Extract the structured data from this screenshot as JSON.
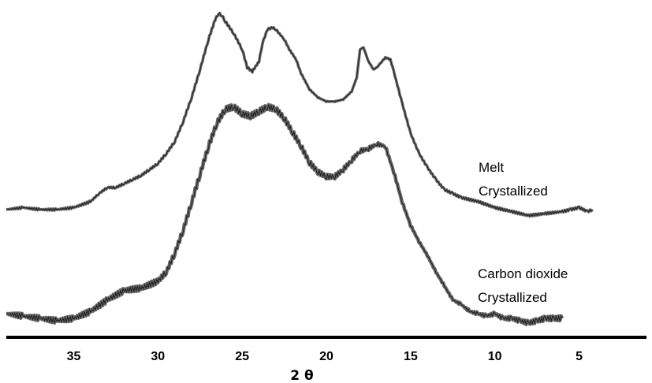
{
  "chart_data": {
    "type": "line",
    "xlabel": "2 θ",
    "ylabel": "",
    "x_reversed": true,
    "xlim": [
      39,
      1
    ],
    "x_ticks": [
      "35",
      "30",
      "25",
      "20",
      "15",
      "10",
      "5"
    ],
    "tick_values": [
      35,
      30,
      25,
      20,
      15,
      10,
      5
    ],
    "grid": false,
    "line_color": "#666666",
    "axis_color": "#000000",
    "series": [
      {
        "name": "Melt Crystallized",
        "label_lines": [
          "Melt",
          "Crystallized"
        ],
        "x": [
          39,
          38,
          37,
          36,
          35,
          34,
          33.5,
          33,
          32.5,
          32,
          31.5,
          31,
          30.5,
          30,
          29.5,
          29,
          28.5,
          28,
          27.5,
          27,
          26.6,
          26.4,
          26.2,
          26,
          25.5,
          25,
          24.7,
          24.4,
          24,
          23.8,
          23.5,
          23.2,
          23,
          22.5,
          22.2,
          21.8,
          21.5,
          21,
          20.5,
          20,
          19.5,
          19,
          18.5,
          18.2,
          18,
          17.8,
          17.5,
          17.2,
          17,
          16.8,
          16.5,
          16.2,
          16,
          15.5,
          15,
          14.5,
          14,
          13.5,
          13,
          12.5,
          12,
          11,
          10,
          9,
          8,
          7,
          6,
          5.5,
          5,
          4.5,
          4.2
        ],
        "y": [
          0.02,
          0.03,
          0.02,
          0.02,
          0.03,
          0.06,
          0.1,
          0.13,
          0.13,
          0.15,
          0.17,
          0.19,
          0.22,
          0.25,
          0.3,
          0.36,
          0.46,
          0.58,
          0.72,
          0.87,
          0.97,
          1.0,
          0.99,
          0.96,
          0.9,
          0.82,
          0.73,
          0.71,
          0.76,
          0.85,
          0.92,
          0.93,
          0.92,
          0.87,
          0.82,
          0.77,
          0.7,
          0.62,
          0.58,
          0.56,
          0.56,
          0.57,
          0.61,
          0.68,
          0.82,
          0.83,
          0.76,
          0.72,
          0.73,
          0.75,
          0.78,
          0.77,
          0.71,
          0.55,
          0.4,
          0.3,
          0.23,
          0.17,
          0.12,
          0.1,
          0.08,
          0.06,
          0.03,
          0.01,
          -0.01,
          0.0,
          0.01,
          0.02,
          0.03,
          0.01,
          0.02
        ]
      },
      {
        "name": "Carbon dioxide Crystallized",
        "label_lines": [
          "Carbon dioxide",
          "Crystallized"
        ],
        "x": [
          39,
          38,
          37,
          36,
          35,
          34,
          33,
          32,
          31,
          30,
          29.5,
          29,
          28.5,
          28,
          27.5,
          27,
          26.5,
          26,
          25.5,
          25,
          24.5,
          24,
          23.5,
          23,
          22.5,
          22,
          21.5,
          21,
          20.5,
          20,
          19.5,
          19,
          18.5,
          18,
          17.5,
          17,
          16.5,
          16,
          15.5,
          15,
          14.5,
          14,
          13.5,
          13,
          12.5,
          12,
          11.5,
          11,
          10.5,
          10,
          9.5,
          9,
          8.5,
          8,
          7.5,
          7,
          6.5,
          6
        ],
        "y": [
          0.02,
          0.01,
          0.0,
          -0.01,
          0.0,
          0.03,
          0.08,
          0.12,
          0.13,
          0.16,
          0.2,
          0.28,
          0.38,
          0.5,
          0.62,
          0.74,
          0.84,
          0.9,
          0.91,
          0.88,
          0.87,
          0.89,
          0.91,
          0.9,
          0.86,
          0.8,
          0.74,
          0.67,
          0.63,
          0.61,
          0.61,
          0.64,
          0.68,
          0.72,
          0.73,
          0.75,
          0.74,
          0.63,
          0.5,
          0.4,
          0.33,
          0.27,
          0.2,
          0.14,
          0.08,
          0.06,
          0.03,
          0.02,
          0.01,
          0.02,
          0.0,
          0.0,
          -0.01,
          -0.02,
          -0.01,
          0.0,
          0.0,
          0.0
        ]
      }
    ]
  }
}
